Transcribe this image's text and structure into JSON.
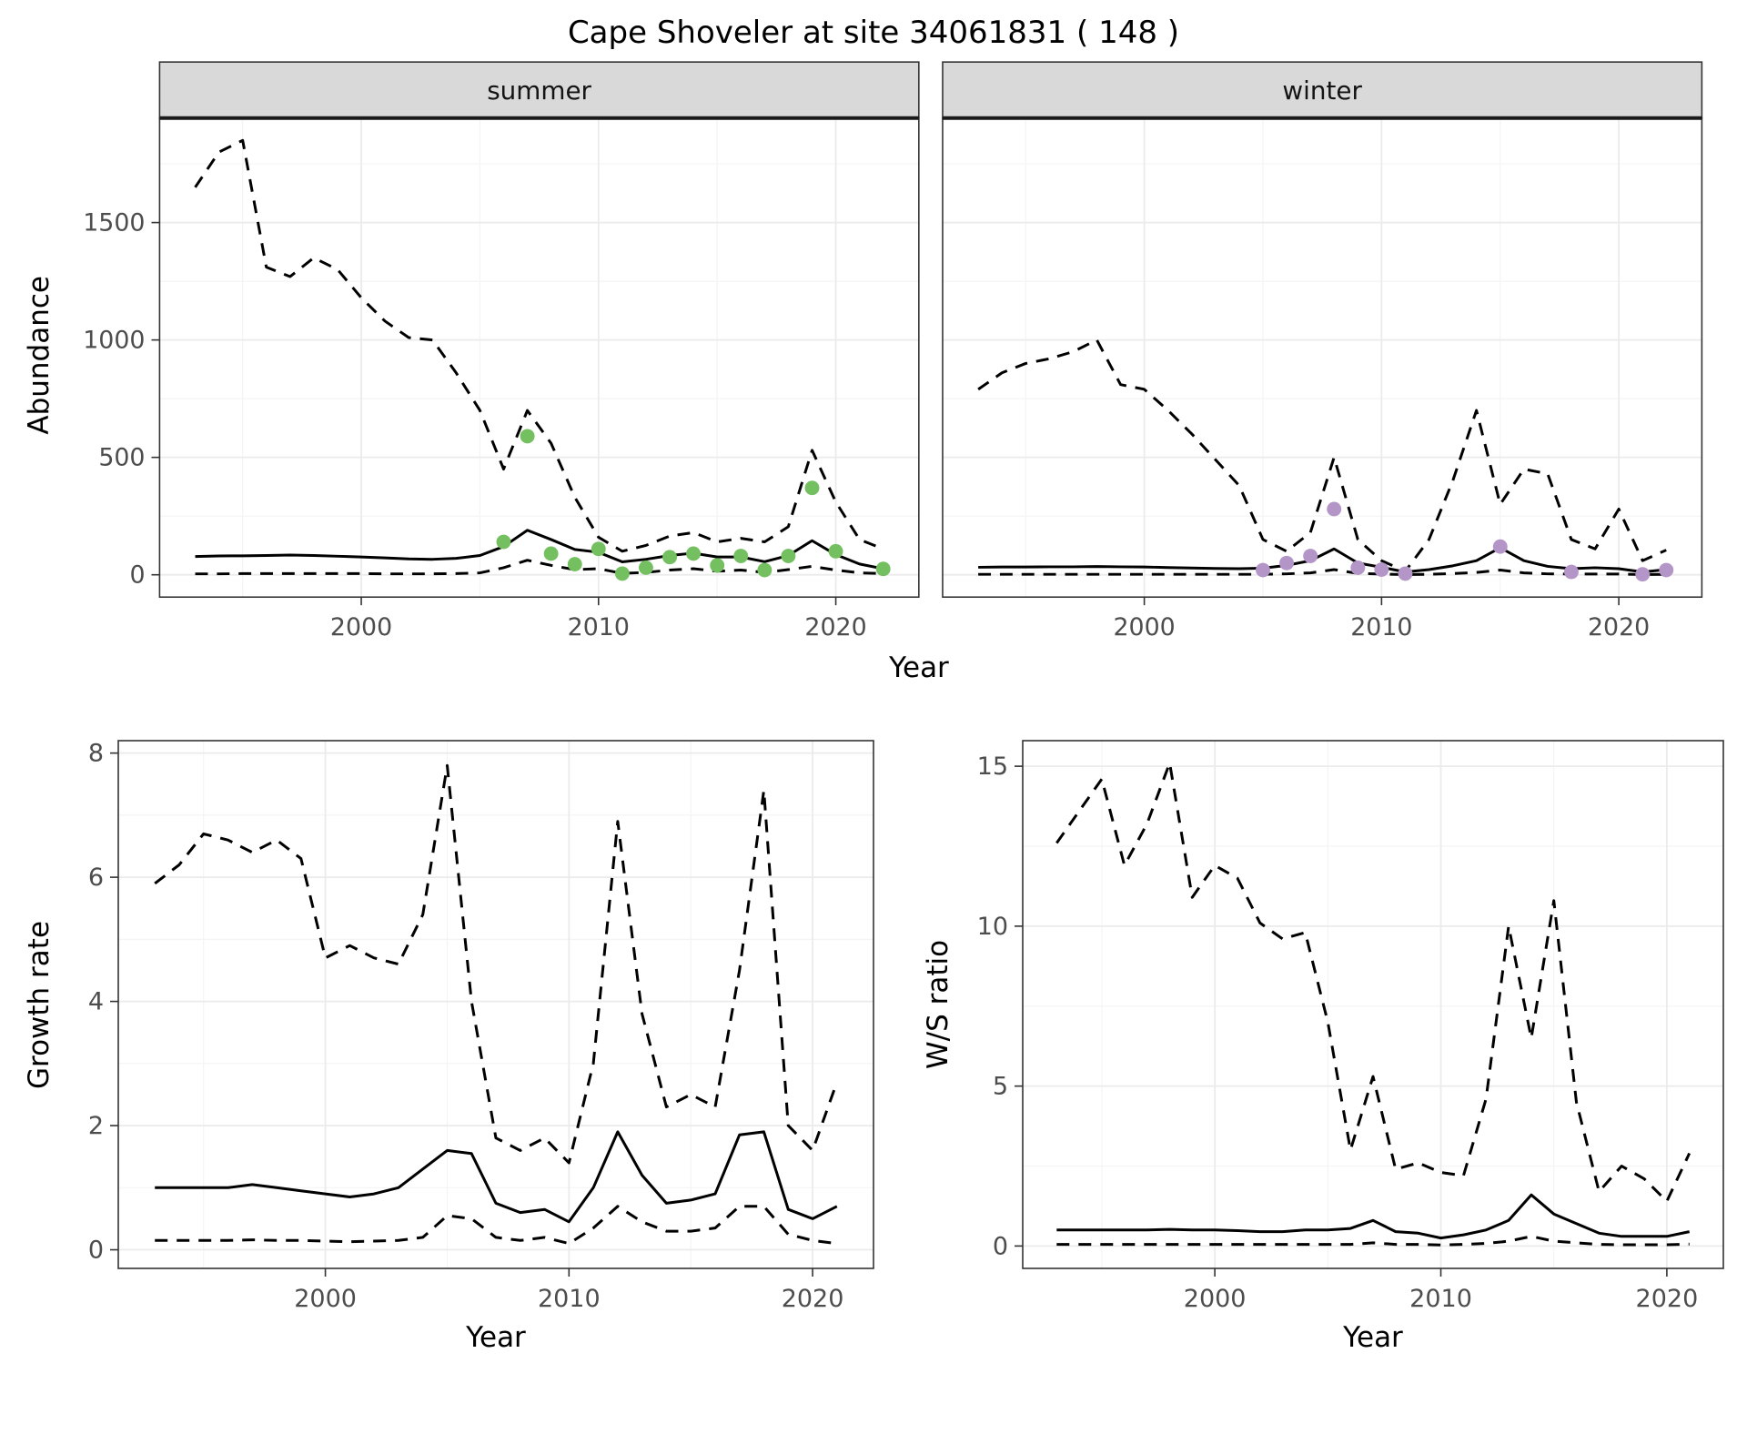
{
  "title": "Cape Shoveler at site 34061831 ( 148 )",
  "theme": {
    "summer_point_color": "#74c061",
    "winter_point_color": "#b495c8",
    "line_color": "#000000",
    "strip_bg": "#d9d9d9",
    "strip_text_color": "#141414",
    "grid_major": "#ebebeb",
    "grid_minor": "#f4f4f4",
    "panel_border": "#333333",
    "tick_label_color": "#4d4d4d"
  },
  "chart_data": [
    {
      "id": "abundance_summer",
      "type": "line",
      "facet_label": "summer",
      "ylabel": "Abundance",
      "xlabel": "Year",
      "xlim": [
        1991.5,
        2023.5
      ],
      "ylim": [
        -95,
        1945
      ],
      "xticks": [
        2000,
        2010,
        2020
      ],
      "yticks": [
        0,
        500,
        1000,
        1500
      ],
      "xticks_minor": [
        1995,
        2005,
        2015
      ],
      "yticks_minor": [
        250,
        750,
        1250,
        1750
      ],
      "show_y_tick_labels": true,
      "grid": true,
      "legend": "none",
      "series": [
        {
          "name": "upper_ci",
          "style": "dashed",
          "x": [
            1993,
            1994,
            1995,
            1996,
            1997,
            1998,
            1999,
            2000,
            2001,
            2002,
            2003,
            2004,
            2005,
            2006,
            2007,
            2008,
            2009,
            2010,
            2011,
            2012,
            2013,
            2014,
            2015,
            2016,
            2017,
            2018,
            2019,
            2020,
            2021,
            2022
          ],
          "y": [
            1650,
            1800,
            1850,
            1310,
            1270,
            1350,
            1300,
            1180,
            1080,
            1010,
            1000,
            860,
            700,
            450,
            700,
            560,
            330,
            160,
            100,
            125,
            165,
            180,
            140,
            155,
            140,
            205,
            530,
            310,
            150,
            110
          ]
        },
        {
          "name": "fit",
          "style": "solid",
          "x": [
            1993,
            1994,
            1995,
            1996,
            1997,
            1998,
            1999,
            2000,
            2001,
            2002,
            2003,
            2004,
            2005,
            2006,
            2007,
            2008,
            2009,
            2010,
            2011,
            2012,
            2013,
            2014,
            2015,
            2016,
            2017,
            2018,
            2019,
            2020,
            2021,
            2022
          ],
          "y": [
            78,
            80,
            81,
            82,
            84,
            82,
            79,
            76,
            72,
            68,
            66,
            70,
            82,
            120,
            190,
            150,
            108,
            96,
            55,
            66,
            82,
            92,
            76,
            76,
            56,
            82,
            145,
            86,
            46,
            26
          ]
        },
        {
          "name": "lower_ci",
          "style": "dashed",
          "x": [
            1993,
            1994,
            1995,
            1996,
            1997,
            1998,
            1999,
            2000,
            2001,
            2002,
            2003,
            2004,
            2005,
            2006,
            2007,
            2008,
            2009,
            2010,
            2011,
            2012,
            2013,
            2014,
            2015,
            2016,
            2017,
            2018,
            2019,
            2020,
            2021,
            2022
          ],
          "y": [
            4,
            4,
            5,
            5,
            5,
            5,
            5,
            5,
            4,
            4,
            4,
            5,
            8,
            30,
            62,
            40,
            22,
            26,
            6,
            10,
            20,
            26,
            15,
            20,
            10,
            22,
            36,
            20,
            8,
            5
          ]
        }
      ],
      "points": {
        "color_key": "summer_point_color",
        "x": [
          2006,
          2007,
          2008,
          2009,
          2010,
          2011,
          2012,
          2013,
          2014,
          2015,
          2016,
          2017,
          2018,
          2019,
          2020,
          2022
        ],
        "y": [
          140,
          590,
          90,
          45,
          110,
          5,
          30,
          75,
          90,
          40,
          80,
          20,
          80,
          370,
          100,
          25
        ]
      }
    },
    {
      "id": "abundance_winter",
      "type": "line",
      "facet_label": "winter",
      "ylabel": "Abundance",
      "xlabel": "Year",
      "xlim": [
        1991.5,
        2023.5
      ],
      "ylim": [
        -95,
        1945
      ],
      "xticks": [
        2000,
        2010,
        2020
      ],
      "yticks": [
        0,
        500,
        1000,
        1500
      ],
      "xticks_minor": [
        1995,
        2005,
        2015
      ],
      "yticks_minor": [
        250,
        750,
        1250,
        1750
      ],
      "show_y_tick_labels": false,
      "grid": true,
      "legend": "none",
      "series": [
        {
          "name": "upper_ci",
          "style": "dashed",
          "x": [
            1993,
            1994,
            1995,
            1996,
            1997,
            1998,
            1999,
            2000,
            2001,
            2002,
            2003,
            2004,
            2005,
            2006,
            2007,
            2008,
            2009,
            2010,
            2011,
            2012,
            2013,
            2014,
            2015,
            2016,
            2017,
            2018,
            2019,
            2020,
            2021,
            2022
          ],
          "y": [
            790,
            860,
            900,
            920,
            950,
            1000,
            810,
            790,
            700,
            600,
            490,
            380,
            150,
            100,
            180,
            500,
            150,
            60,
            15,
            150,
            400,
            700,
            300,
            450,
            430,
            150,
            110,
            280,
            60,
            105
          ]
        },
        {
          "name": "fit",
          "style": "solid",
          "x": [
            1993,
            1994,
            1995,
            1996,
            1997,
            1998,
            1999,
            2000,
            2001,
            2002,
            2003,
            2004,
            2005,
            2006,
            2007,
            2008,
            2009,
            2010,
            2011,
            2012,
            2013,
            2014,
            2015,
            2016,
            2017,
            2018,
            2019,
            2020,
            2021,
            2022
          ],
          "y": [
            32,
            33,
            33,
            34,
            34,
            35,
            34,
            33,
            31,
            29,
            27,
            26,
            28,
            40,
            60,
            110,
            50,
            32,
            12,
            22,
            38,
            60,
            115,
            60,
            36,
            26,
            30,
            26,
            12,
            22
          ]
        },
        {
          "name": "lower_ci",
          "style": "dashed",
          "x": [
            1993,
            1994,
            1995,
            1996,
            1997,
            1998,
            1999,
            2000,
            2001,
            2002,
            2003,
            2004,
            2005,
            2006,
            2007,
            2008,
            2009,
            2010,
            2011,
            2012,
            2013,
            2014,
            2015,
            2016,
            2017,
            2018,
            2019,
            2020,
            2021,
            2022
          ],
          "y": [
            2,
            2,
            2,
            2,
            2,
            2,
            2,
            2,
            2,
            2,
            2,
            2,
            2,
            4,
            8,
            22,
            6,
            3,
            1,
            2,
            5,
            10,
            20,
            8,
            4,
            3,
            3,
            3,
            1,
            2
          ]
        }
      ],
      "points": {
        "color_key": "winter_point_color",
        "x": [
          2005,
          2006,
          2007,
          2008,
          2009,
          2010,
          2011,
          2015,
          2018,
          2021,
          2022
        ],
        "y": [
          20,
          50,
          80,
          280,
          30,
          22,
          5,
          120,
          12,
          2,
          20
        ]
      }
    },
    {
      "id": "growth_rate",
      "type": "line",
      "facet_label": null,
      "ylabel": "Growth rate",
      "xlabel": "Year",
      "xlim": [
        1991.5,
        2022.5
      ],
      "ylim": [
        -0.3,
        8.2
      ],
      "xticks": [
        2000,
        2010,
        2020
      ],
      "yticks": [
        0,
        2,
        4,
        6,
        8
      ],
      "xticks_minor": [
        1995,
        2005,
        2015
      ],
      "yticks_minor": [
        1,
        3,
        5,
        7
      ],
      "show_y_tick_labels": true,
      "grid": true,
      "legend": "none",
      "series": [
        {
          "name": "upper_ci",
          "style": "dashed",
          "x": [
            1993,
            1994,
            1995,
            1996,
            1997,
            1998,
            1999,
            2000,
            2001,
            2002,
            2003,
            2004,
            2005,
            2006,
            2007,
            2008,
            2009,
            2010,
            2011,
            2012,
            2013,
            2014,
            2015,
            2016,
            2017,
            2018,
            2019,
            2020,
            2021
          ],
          "y": [
            5.9,
            6.2,
            6.7,
            6.6,
            6.4,
            6.6,
            6.3,
            4.7,
            4.9,
            4.7,
            4.6,
            5.4,
            7.8,
            4.0,
            1.8,
            1.6,
            1.8,
            1.4,
            3.0,
            6.9,
            3.8,
            2.3,
            2.5,
            2.3,
            4.5,
            7.4,
            2.0,
            1.6,
            2.7
          ]
        },
        {
          "name": "fit",
          "style": "solid",
          "x": [
            1993,
            1994,
            1995,
            1996,
            1997,
            1998,
            1999,
            2000,
            2001,
            2002,
            2003,
            2004,
            2005,
            2006,
            2007,
            2008,
            2009,
            2010,
            2011,
            2012,
            2013,
            2014,
            2015,
            2016,
            2017,
            2018,
            2019,
            2020,
            2021
          ],
          "y": [
            1.0,
            1.0,
            1.0,
            1.0,
            1.05,
            1.0,
            0.95,
            0.9,
            0.85,
            0.9,
            1.0,
            1.3,
            1.6,
            1.55,
            0.75,
            0.6,
            0.65,
            0.45,
            1.0,
            1.9,
            1.2,
            0.75,
            0.8,
            0.9,
            1.85,
            1.9,
            0.65,
            0.5,
            0.7
          ]
        },
        {
          "name": "lower_ci",
          "style": "dashed",
          "x": [
            1993,
            1994,
            1995,
            1996,
            1997,
            1998,
            1999,
            2000,
            2001,
            2002,
            2003,
            2004,
            2005,
            2006,
            2007,
            2008,
            2009,
            2010,
            2011,
            2012,
            2013,
            2014,
            2015,
            2016,
            2017,
            2018,
            2019,
            2020,
            2021
          ],
          "y": [
            0.15,
            0.15,
            0.15,
            0.15,
            0.16,
            0.15,
            0.15,
            0.14,
            0.13,
            0.14,
            0.15,
            0.2,
            0.55,
            0.5,
            0.2,
            0.15,
            0.2,
            0.1,
            0.35,
            0.7,
            0.45,
            0.3,
            0.3,
            0.35,
            0.7,
            0.7,
            0.25,
            0.15,
            0.1
          ]
        }
      ],
      "points": null
    },
    {
      "id": "ws_ratio",
      "type": "line",
      "facet_label": null,
      "ylabel": "W/S ratio",
      "xlabel": "Year",
      "xlim": [
        1991.5,
        2022.5
      ],
      "ylim": [
        -0.7,
        15.8
      ],
      "xticks": [
        2000,
        2010,
        2020
      ],
      "yticks": [
        0,
        5,
        10,
        15
      ],
      "xticks_minor": [
        1995,
        2005,
        2015
      ],
      "yticks_minor": [
        2.5,
        7.5,
        12.5
      ],
      "show_y_tick_labels": true,
      "grid": true,
      "legend": "none",
      "series": [
        {
          "name": "upper_ci",
          "style": "dashed",
          "x": [
            1993,
            1994,
            1995,
            1996,
            1997,
            1998,
            1999,
            2000,
            2001,
            2002,
            2003,
            2004,
            2005,
            2006,
            2007,
            2008,
            2009,
            2010,
            2011,
            2012,
            2013,
            2014,
            2015,
            2016,
            2017,
            2018,
            2019,
            2020,
            2021
          ],
          "y": [
            12.6,
            13.6,
            14.6,
            11.9,
            13.2,
            15.1,
            10.9,
            11.9,
            11.5,
            10.1,
            9.6,
            9.8,
            7.0,
            3.0,
            5.3,
            2.4,
            2.6,
            2.3,
            2.2,
            4.6,
            10.0,
            6.5,
            10.8,
            4.5,
            1.7,
            2.5,
            2.1,
            1.4,
            2.9
          ]
        },
        {
          "name": "fit",
          "style": "solid",
          "x": [
            1993,
            1994,
            1995,
            1996,
            1997,
            1998,
            1999,
            2000,
            2001,
            2002,
            2003,
            2004,
            2005,
            2006,
            2007,
            2008,
            2009,
            2010,
            2011,
            2012,
            2013,
            2014,
            2015,
            2016,
            2017,
            2018,
            2019,
            2020,
            2021
          ],
          "y": [
            0.5,
            0.5,
            0.5,
            0.5,
            0.5,
            0.52,
            0.5,
            0.5,
            0.48,
            0.45,
            0.45,
            0.5,
            0.5,
            0.55,
            0.8,
            0.45,
            0.4,
            0.25,
            0.35,
            0.5,
            0.8,
            1.6,
            1.0,
            0.7,
            0.4,
            0.3,
            0.3,
            0.3,
            0.45
          ]
        },
        {
          "name": "lower_ci",
          "style": "dashed",
          "x": [
            1993,
            1994,
            1995,
            1996,
            1997,
            1998,
            1999,
            2000,
            2001,
            2002,
            2003,
            2004,
            2005,
            2006,
            2007,
            2008,
            2009,
            2010,
            2011,
            2012,
            2013,
            2014,
            2015,
            2016,
            2017,
            2018,
            2019,
            2020,
            2021
          ],
          "y": [
            0.05,
            0.05,
            0.05,
            0.05,
            0.05,
            0.05,
            0.05,
            0.05,
            0.05,
            0.05,
            0.05,
            0.05,
            0.05,
            0.05,
            0.1,
            0.05,
            0.05,
            0.03,
            0.05,
            0.08,
            0.15,
            0.3,
            0.15,
            0.1,
            0.05,
            0.04,
            0.04,
            0.04,
            0.06
          ]
        }
      ],
      "points": null
    }
  ]
}
